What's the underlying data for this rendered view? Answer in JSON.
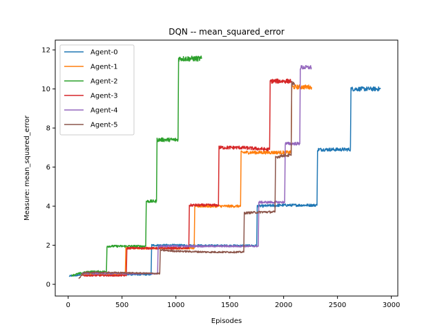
{
  "chart_data": {
    "type": "line",
    "title": "DQN -- mean_squared_error",
    "xlabel": "Episodes",
    "ylabel": "Measure: mean_squared_error",
    "xlim": [
      -120,
      3060
    ],
    "ylim": [
      -0.6,
      12.5
    ],
    "x_ticks": [
      0,
      500,
      1000,
      1500,
      2000,
      2500,
      3000
    ],
    "y_ticks": [
      0,
      2,
      4,
      6,
      8,
      10,
      12
    ],
    "grid": false,
    "legend_position": "top-left",
    "series": [
      {
        "name": "Agent-0",
        "color": "#1f77b4",
        "noise": 0.09,
        "points": [
          [
            10,
            0.42
          ],
          [
            50,
            0.45
          ],
          [
            90,
            0.45
          ],
          [
            110,
            0.5
          ],
          [
            300,
            0.5
          ],
          [
            500,
            0.5
          ],
          [
            770,
            0.5
          ],
          [
            775,
            2.0
          ],
          [
            1000,
            2.0
          ],
          [
            1300,
            1.98
          ],
          [
            1500,
            1.98
          ],
          [
            1750,
            1.98
          ],
          [
            1755,
            4.0
          ],
          [
            2000,
            4.05
          ],
          [
            2310,
            4.05
          ],
          [
            2315,
            6.9
          ],
          [
            2500,
            6.9
          ],
          [
            2620,
            6.9
          ],
          [
            2625,
            10.0
          ],
          [
            2900,
            10.0
          ]
        ]
      },
      {
        "name": "Agent-1",
        "color": "#ff7f0e",
        "noise": 0.09,
        "points": [
          [
            120,
            0.5
          ],
          [
            300,
            0.5
          ],
          [
            530,
            0.5
          ],
          [
            535,
            1.85
          ],
          [
            800,
            1.85
          ],
          [
            1170,
            1.85
          ],
          [
            1175,
            4.0
          ],
          [
            1400,
            4.0
          ],
          [
            1600,
            4.0
          ],
          [
            1605,
            6.75
          ],
          [
            1800,
            6.75
          ],
          [
            2070,
            6.75
          ],
          [
            2075,
            10.1
          ],
          [
            2260,
            10.1
          ]
        ]
      },
      {
        "name": "Agent-2",
        "color": "#2ca02c",
        "noise": 0.1,
        "points": [
          [
            30,
            0.45
          ],
          [
            100,
            0.55
          ],
          [
            200,
            0.65
          ],
          [
            355,
            0.65
          ],
          [
            360,
            1.95
          ],
          [
            550,
            1.95
          ],
          [
            720,
            1.95
          ],
          [
            725,
            4.25
          ],
          [
            820,
            4.25
          ],
          [
            825,
            7.4
          ],
          [
            1020,
            7.4
          ],
          [
            1025,
            11.55
          ],
          [
            1240,
            11.55
          ]
        ]
      },
      {
        "name": "Agent-3",
        "color": "#d62728",
        "noise": 0.09,
        "points": [
          [
            140,
            0.45
          ],
          [
            300,
            0.45
          ],
          [
            540,
            0.45
          ],
          [
            545,
            1.85
          ],
          [
            800,
            1.85
          ],
          [
            1120,
            1.85
          ],
          [
            1125,
            4.05
          ],
          [
            1300,
            4.05
          ],
          [
            1395,
            4.05
          ],
          [
            1400,
            7.0
          ],
          [
            1600,
            7.0
          ],
          [
            1870,
            6.9
          ],
          [
            1875,
            10.4
          ],
          [
            2070,
            10.4
          ]
        ]
      },
      {
        "name": "Agent-4",
        "color": "#9467bd",
        "noise": 0.08,
        "points": [
          [
            130,
            0.55
          ],
          [
            400,
            0.55
          ],
          [
            830,
            0.55
          ],
          [
            835,
            1.95
          ],
          [
            1200,
            1.95
          ],
          [
            1500,
            1.95
          ],
          [
            1765,
            1.95
          ],
          [
            1770,
            4.2
          ],
          [
            1900,
            4.2
          ],
          [
            2010,
            4.2
          ],
          [
            2015,
            7.2
          ],
          [
            2090,
            7.2
          ],
          [
            2150,
            7.2
          ],
          [
            2155,
            11.1
          ],
          [
            2260,
            11.1
          ]
        ]
      },
      {
        "name": "Agent-5",
        "color": "#8c564b",
        "noise": 0.08,
        "points": [
          [
            100,
            0.3
          ],
          [
            150,
            0.6
          ],
          [
            400,
            0.6
          ],
          [
            850,
            0.55
          ],
          [
            855,
            1.75
          ],
          [
            1000,
            1.7
          ],
          [
            1300,
            1.65
          ],
          [
            1630,
            1.65
          ],
          [
            1635,
            3.65
          ],
          [
            1800,
            3.7
          ],
          [
            1920,
            3.7
          ],
          [
            1925,
            6.5
          ],
          [
            2000,
            6.6
          ],
          [
            2070,
            6.6
          ],
          [
            2075,
            10.3
          ],
          [
            2100,
            10.3
          ]
        ]
      }
    ]
  }
}
